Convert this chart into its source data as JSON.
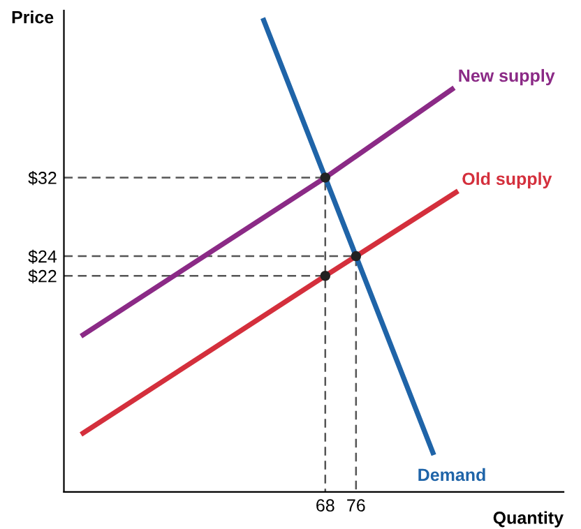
{
  "chart_data": {
    "type": "line",
    "xlabel": "Quantity",
    "ylabel": "Price",
    "xlim": [
      0,
      130
    ],
    "ylim": [
      0,
      49
    ],
    "xticks": [
      68,
      76
    ],
    "yticks": [
      {
        "value": 22,
        "label": "$22"
      },
      {
        "value": 24,
        "label": "$24"
      },
      {
        "value": 32,
        "label": "$32"
      }
    ],
    "grid": false,
    "legend": false,
    "series": [
      {
        "line_style": "dashed",
        "color": "#555555",
        "x": [
          0,
          68,
          68
        ],
        "values": [
          32,
          32,
          0
        ]
      },
      {
        "line_style": "dashed",
        "color": "#555555",
        "x": [
          0,
          76,
          76
        ],
        "values": [
          24,
          24,
          0
        ]
      },
      {
        "line_style": "dashed",
        "color": "#555555",
        "x": [
          0,
          68
        ],
        "values": [
          22,
          22
        ]
      },
      {
        "name": "New supply",
        "color": "#8b2a86",
        "x": [
          5,
          68,
          101
        ],
        "values": [
          16,
          32,
          41
        ]
      },
      {
        "name": "Old supply",
        "color": "#d42f3c",
        "x": [
          5,
          68,
          76,
          102
        ],
        "values": [
          6,
          22,
          24,
          30.5
        ]
      },
      {
        "name": "Demand",
        "color": "#1f64a8",
        "x": [
          52,
          68,
          76,
          96
        ],
        "values": [
          48,
          32,
          24,
          4
        ]
      },
      {
        "type": "scatter",
        "marker": "circle",
        "color": "#222222",
        "x": [
          68,
          76,
          68
        ],
        "values": [
          32,
          24,
          22
        ]
      }
    ]
  }
}
